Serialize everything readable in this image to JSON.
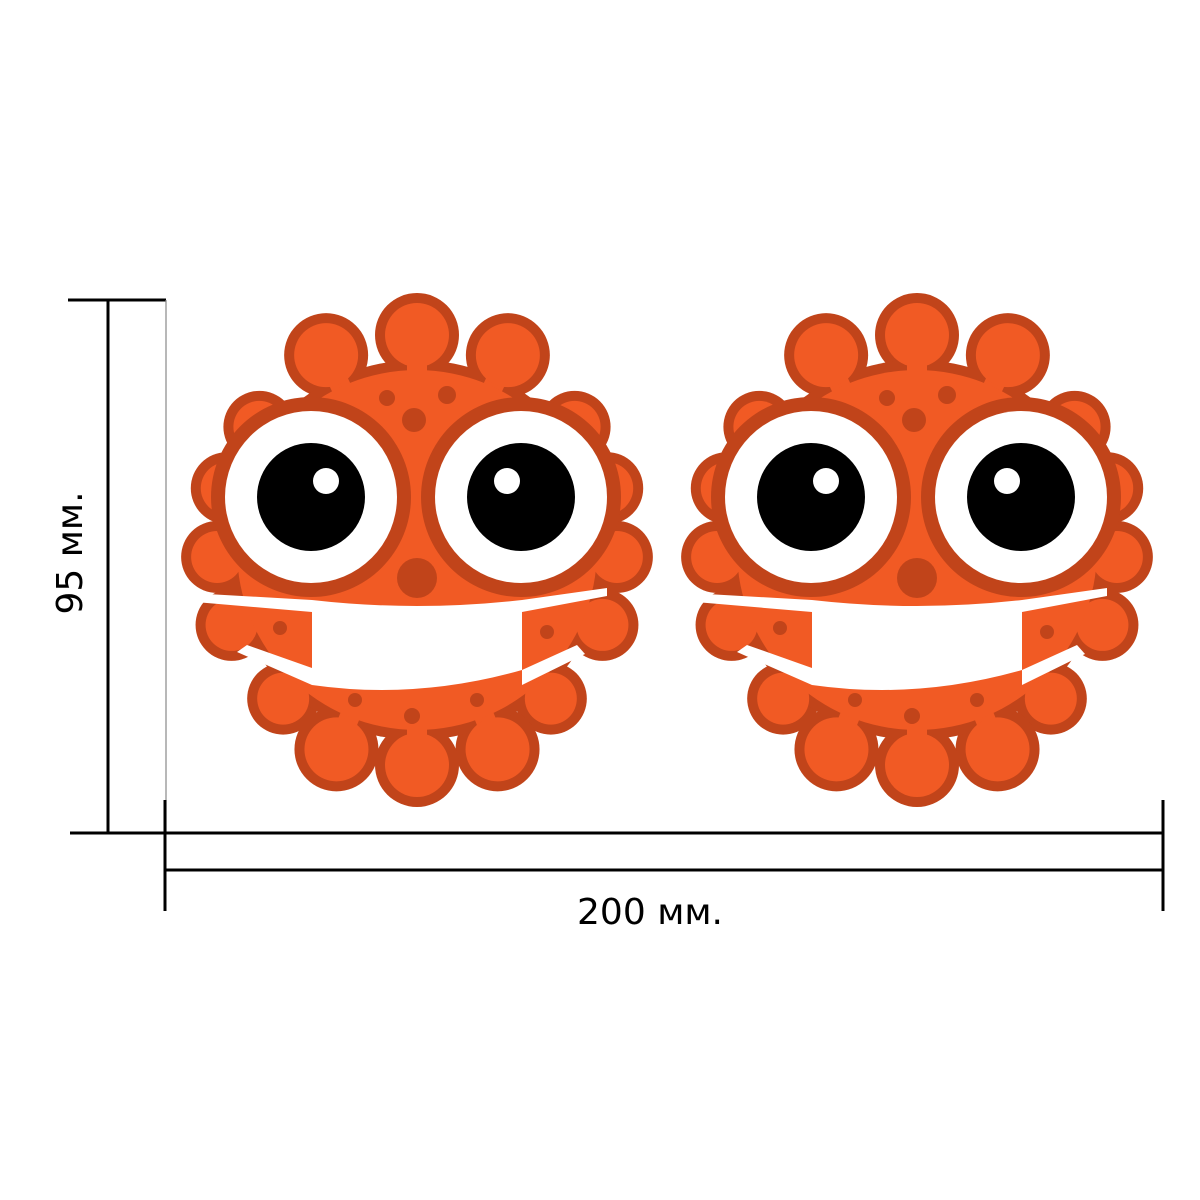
{
  "dimensions": {
    "width_label": "200 мм.",
    "height_label": "95 мм."
  },
  "illustration": {
    "subject": "virus-character-with-mask",
    "count": 2,
    "colors": {
      "body": "#f15a24",
      "outline": "#c1441a",
      "eye_white": "#ffffff",
      "pupil": "#000000",
      "mask": "#ffffff",
      "dimension_line": "#000000"
    }
  }
}
